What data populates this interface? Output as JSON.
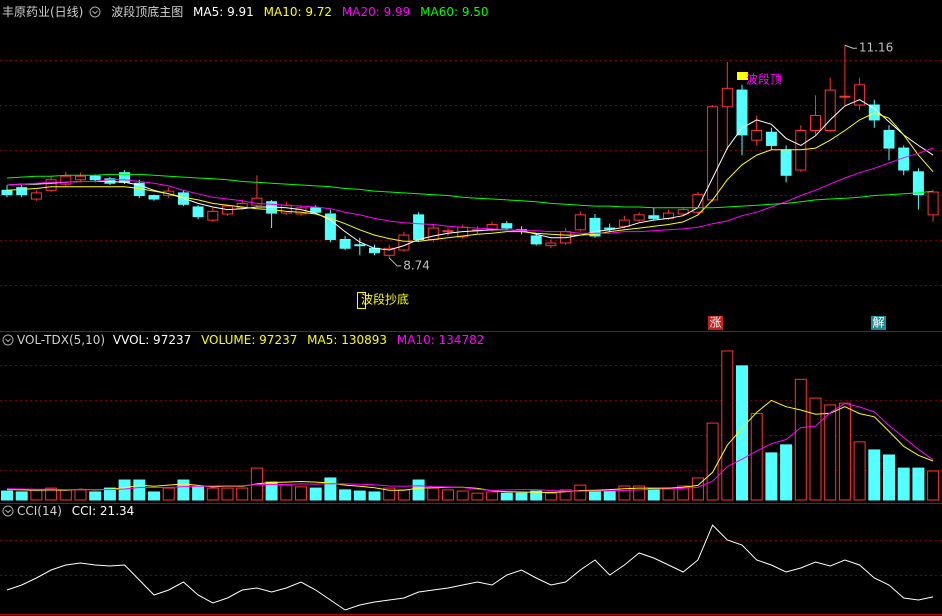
{
  "chart_data": [
    {
      "type": "candlestick",
      "title": "丰原药业(日线)",
      "subtitle": "波段顶底主图",
      "up_color": "#ff3232",
      "down_color": "#54ffff",
      "ylim": [
        7.92,
        11.47
      ],
      "open": [
        9.51,
        9.54,
        9.41,
        9.51,
        9.58,
        9.63,
        9.67,
        9.64,
        9.71,
        9.59,
        9.45,
        9.45,
        9.48,
        9.32,
        9.17,
        9.24,
        9.31,
        9.34,
        9.38,
        9.25,
        9.24,
        9.31,
        9.24,
        8.95,
        8.89,
        8.85,
        8.77,
        8.83,
        9.23,
        8.95,
        9.04,
        8.98,
        9.06,
        9.06,
        9.13,
        9.06,
        8.99,
        8.88,
        8.91,
        9.06,
        9.19,
        9.08,
        9.1,
        9.17,
        9.22,
        9.19,
        9.24,
        9.26,
        9.4,
        10.46,
        10.65,
        10.08,
        10.17,
        9.97,
        9.74,
        10.19,
        10.19,
        10.57,
        10.48,
        10.48,
        10.19,
        9.99,
        9.72,
        9.23
      ],
      "high": [
        9.57,
        9.57,
        9.51,
        9.67,
        9.72,
        9.71,
        9.69,
        9.66,
        9.74,
        9.63,
        9.46,
        9.54,
        9.51,
        9.34,
        9.31,
        9.35,
        9.4,
        9.68,
        9.4,
        9.38,
        9.34,
        9.34,
        9.29,
        8.99,
        8.97,
        8.89,
        8.89,
        9.04,
        9.26,
        9.12,
        9.08,
        9.12,
        9.1,
        9.15,
        9.16,
        9.1,
        9.02,
        8.95,
        9.08,
        9.27,
        9.24,
        9.13,
        9.22,
        9.26,
        9.31,
        9.29,
        9.32,
        9.49,
        10.48,
        10.97,
        10.71,
        10.36,
        10.22,
        10.02,
        10.25,
        10.59,
        10.79,
        11.16,
        10.79,
        10.54,
        10.25,
        10.02,
        9.76,
        9.51
      ],
      "low": [
        9.43,
        9.43,
        9.39,
        9.49,
        9.56,
        9.6,
        9.6,
        9.57,
        9.58,
        9.42,
        9.39,
        9.42,
        9.33,
        9.18,
        9.15,
        9.22,
        9.29,
        9.32,
        9.08,
        9.23,
        9.22,
        9.24,
        8.92,
        8.83,
        8.77,
        8.77,
        8.74,
        8.81,
        8.92,
        8.92,
        8.99,
        8.96,
        9.01,
        9.04,
        9.06,
        9.01,
        8.88,
        8.85,
        8.89,
        9.04,
        8.97,
        9.04,
        9.08,
        9.15,
        9.17,
        9.17,
        9.22,
        9.24,
        9.38,
        9.97,
        9.91,
        10.02,
        9.97,
        9.6,
        9.72,
        10.14,
        10.17,
        10.48,
        10.42,
        10.22,
        9.85,
        9.68,
        9.29,
        9.15
      ],
      "close": [
        9.46,
        9.46,
        9.48,
        9.63,
        9.67,
        9.67,
        9.63,
        9.59,
        9.6,
        9.45,
        9.41,
        9.5,
        9.35,
        9.21,
        9.27,
        9.33,
        9.36,
        9.42,
        9.25,
        9.34,
        9.31,
        9.26,
        8.95,
        8.85,
        8.88,
        8.8,
        8.85,
        9.0,
        8.95,
        9.08,
        9.05,
        9.09,
        9.06,
        9.12,
        9.08,
        9.05,
        8.9,
        8.91,
        9.04,
        9.23,
        8.99,
        9.07,
        9.17,
        9.23,
        9.19,
        9.25,
        9.29,
        9.46,
        10.46,
        10.67,
        10.14,
        10.19,
        10.02,
        9.68,
        10.19,
        10.36,
        10.65,
        10.58,
        10.71,
        10.31,
        9.99,
        9.74,
        9.46,
        9.49
      ],
      "series": [
        {
          "name": "MA5: 9.91",
          "color": "#ffffff",
          "values": [
            9.57,
            9.58,
            9.58,
            9.59,
            9.6,
            9.61,
            9.61,
            9.61,
            9.6,
            9.57,
            9.51,
            9.47,
            9.42,
            9.36,
            9.32,
            9.29,
            9.3,
            9.32,
            9.32,
            9.31,
            9.29,
            9.25,
            9.17,
            9.04,
            8.92,
            8.85,
            8.83,
            8.88,
            8.95,
            8.99,
            9.02,
            9.04,
            9.05,
            9.06,
            9.06,
            9.05,
            9.01,
            8.97,
            8.97,
            9.0,
            9.04,
            9.06,
            9.09,
            9.14,
            9.17,
            9.19,
            9.22,
            9.31,
            9.65,
            9.99,
            10.22,
            10.31,
            10.26,
            10.1,
            10.02,
            10.13,
            10.31,
            10.47,
            10.54,
            10.44,
            10.29,
            10.14,
            10.02,
            9.91
          ]
        },
        {
          "name": "MA10: 9.72",
          "color": "#ffff00",
          "values": [
            9.51,
            9.52,
            9.53,
            9.55,
            9.55,
            9.55,
            9.55,
            9.55,
            9.55,
            9.53,
            9.5,
            9.47,
            9.43,
            9.4,
            9.36,
            9.34,
            9.32,
            9.3,
            9.29,
            9.27,
            9.26,
            9.24,
            9.19,
            9.13,
            9.06,
            9.0,
            8.96,
            8.93,
            8.93,
            8.95,
            8.97,
            8.99,
            9.01,
            9.02,
            9.04,
            9.04,
            9.02,
            9.01,
            9.0,
            9.0,
            9.01,
            9.04,
            9.06,
            9.08,
            9.1,
            9.12,
            9.15,
            9.23,
            9.4,
            9.63,
            9.8,
            9.91,
            9.97,
            9.97,
            9.97,
            9.99,
            10.08,
            10.19,
            10.31,
            10.39,
            10.33,
            10.14,
            9.91,
            9.72
          ]
        },
        {
          "name": "MA20: 9.99",
          "color": "#ff00ff",
          "values": [
            9.57,
            9.58,
            9.59,
            9.6,
            9.6,
            9.61,
            9.61,
            9.63,
            9.63,
            9.61,
            9.59,
            9.56,
            9.51,
            9.47,
            9.43,
            9.41,
            9.39,
            9.36,
            9.35,
            9.34,
            9.33,
            9.32,
            9.3,
            9.26,
            9.23,
            9.19,
            9.16,
            9.14,
            9.13,
            9.12,
            9.1,
            9.09,
            9.08,
            9.07,
            9.06,
            9.05,
            9.05,
            9.04,
            9.04,
            9.02,
            9.02,
            9.02,
            9.04,
            9.04,
            9.05,
            9.06,
            9.07,
            9.09,
            9.13,
            9.16,
            9.22,
            9.26,
            9.32,
            9.38,
            9.45,
            9.51,
            9.58,
            9.65,
            9.71,
            9.76,
            9.82,
            9.88,
            9.93,
            9.99
          ]
        },
        {
          "name": "MA60: 9.50",
          "color": "#00ff00",
          "values": [
            9.65,
            9.66,
            9.67,
            9.67,
            9.68,
            9.68,
            9.68,
            9.69,
            9.69,
            9.69,
            9.68,
            9.67,
            9.66,
            9.65,
            9.64,
            9.63,
            9.61,
            9.6,
            9.59,
            9.58,
            9.57,
            9.56,
            9.55,
            9.53,
            9.52,
            9.5,
            9.49,
            9.48,
            9.47,
            9.46,
            9.45,
            9.43,
            9.42,
            9.41,
            9.4,
            9.39,
            9.38,
            9.36,
            9.35,
            9.34,
            9.33,
            9.33,
            9.32,
            9.32,
            9.31,
            9.31,
            9.31,
            9.31,
            9.31,
            9.32,
            9.33,
            9.34,
            9.35,
            9.36,
            9.38,
            9.4,
            9.41,
            9.42,
            9.43,
            9.45,
            9.46,
            9.47,
            9.48,
            9.5
          ]
        }
      ],
      "annotations": [
        11.16,
        8.74
      ],
      "signals": [
        "波段顶",
        "波段抄底",
        "涨",
        "解"
      ]
    },
    {
      "type": "bar",
      "title": "VOL-TDX(5,10)",
      "subtitle": "VVOL: 97237",
      "name": "VOLUME: 97237",
      "ylim": [
        0,
        520000
      ],
      "values": [
        30000,
        27000,
        34000,
        40000,
        34000,
        34000,
        27000,
        40000,
        67000,
        67000,
        27000,
        40000,
        67000,
        44000,
        40000,
        40000,
        40000,
        107000,
        60000,
        50000,
        44000,
        40000,
        74000,
        34000,
        30000,
        27000,
        40000,
        34000,
        67000,
        40000,
        34000,
        30000,
        23000,
        27000,
        23000,
        23000,
        30000,
        23000,
        34000,
        50000,
        30000,
        30000,
        47000,
        47000,
        37000,
        40000,
        47000,
        74000,
        258000,
        500000,
        450000,
        290000,
        158000,
        185000,
        405000,
        342000,
        319000,
        325000,
        195000,
        168000,
        151000,
        107000,
        107000,
        97237
      ],
      "series": [
        {
          "name": "MA5: 130893",
          "color": "#ffff00",
          "values": [
            35000,
            34000,
            33000,
            34000,
            33000,
            36000,
            34000,
            36000,
            41000,
            50000,
            46000,
            50000,
            54000,
            49000,
            44000,
            47000,
            46000,
            54000,
            59000,
            60000,
            62000,
            60000,
            57000,
            50000,
            46000,
            41000,
            33000,
            33000,
            40000,
            41000,
            43000,
            43000,
            39000,
            31000,
            28000,
            27000,
            26000,
            25000,
            28000,
            32000,
            33000,
            35000,
            38000,
            40000,
            40000,
            40000,
            43000,
            49000,
            93000,
            184000,
            241000,
            294000,
            334000,
            313000,
            302000,
            288000,
            291000,
            313000,
            290000,
            279000,
            230000,
            180000,
            150000,
            130893
          ]
        },
        {
          "name": "MA10: 134782",
          "color": "#ff00ff",
          "values": [
            38000,
            37000,
            36000,
            36000,
            35000,
            35000,
            35000,
            35000,
            37000,
            42000,
            42000,
            42000,
            45000,
            46000,
            47000,
            48000,
            48000,
            52000,
            52000,
            52000,
            54000,
            53000,
            55000,
            54000,
            53000,
            51000,
            47000,
            46000,
            48000,
            45000,
            44000,
            42000,
            36000,
            32000,
            34000,
            35000,
            35000,
            32000,
            30000,
            30000,
            30000,
            31000,
            32000,
            34000,
            36000,
            37000,
            39000,
            43000,
            63000,
            112000,
            137000,
            164000,
            189000,
            203000,
            243000,
            248000,
            293000,
            324000,
            312000,
            296000,
            250000,
            210000,
            170000,
            134782
          ]
        }
      ]
    },
    {
      "type": "line",
      "title": "CCI(14)",
      "ylim": [
        -30,
        300
      ],
      "series": [
        {
          "name": "CCI: 21.34",
          "color": "#ffffff",
          "values": [
            44.8,
            61.8,
            85.6,
            112.8,
            129.8,
            136.6,
            129.8,
            126.4,
            129.8,
            78.8,
            27.8,
            44.8,
            72.0,
            27.8,
            0.6,
            17.6,
            44.8,
            51.6,
            38.0,
            51.6,
            72.0,
            44.8,
            10.8,
            -23.2,
            -6.2,
            4.0,
            10.8,
            17.6,
            38.0,
            44.8,
            51.6,
            61.8,
            72.0,
            61.8,
            95.8,
            112.8,
            85.6,
            61.8,
            72.0,
            112.8,
            146.8,
            95.8,
            129.8,
            170.6,
            153.6,
            129.8,
            106.0,
            146.8,
            265.8,
            214.8,
            197.8,
            146.8,
            129.8,
            106.0,
            119.6,
            140.0,
            126.4,
            146.8,
            129.8,
            85.6,
            61.8,
            17.6,
            10.8,
            21.34
          ]
        }
      ]
    }
  ]
}
